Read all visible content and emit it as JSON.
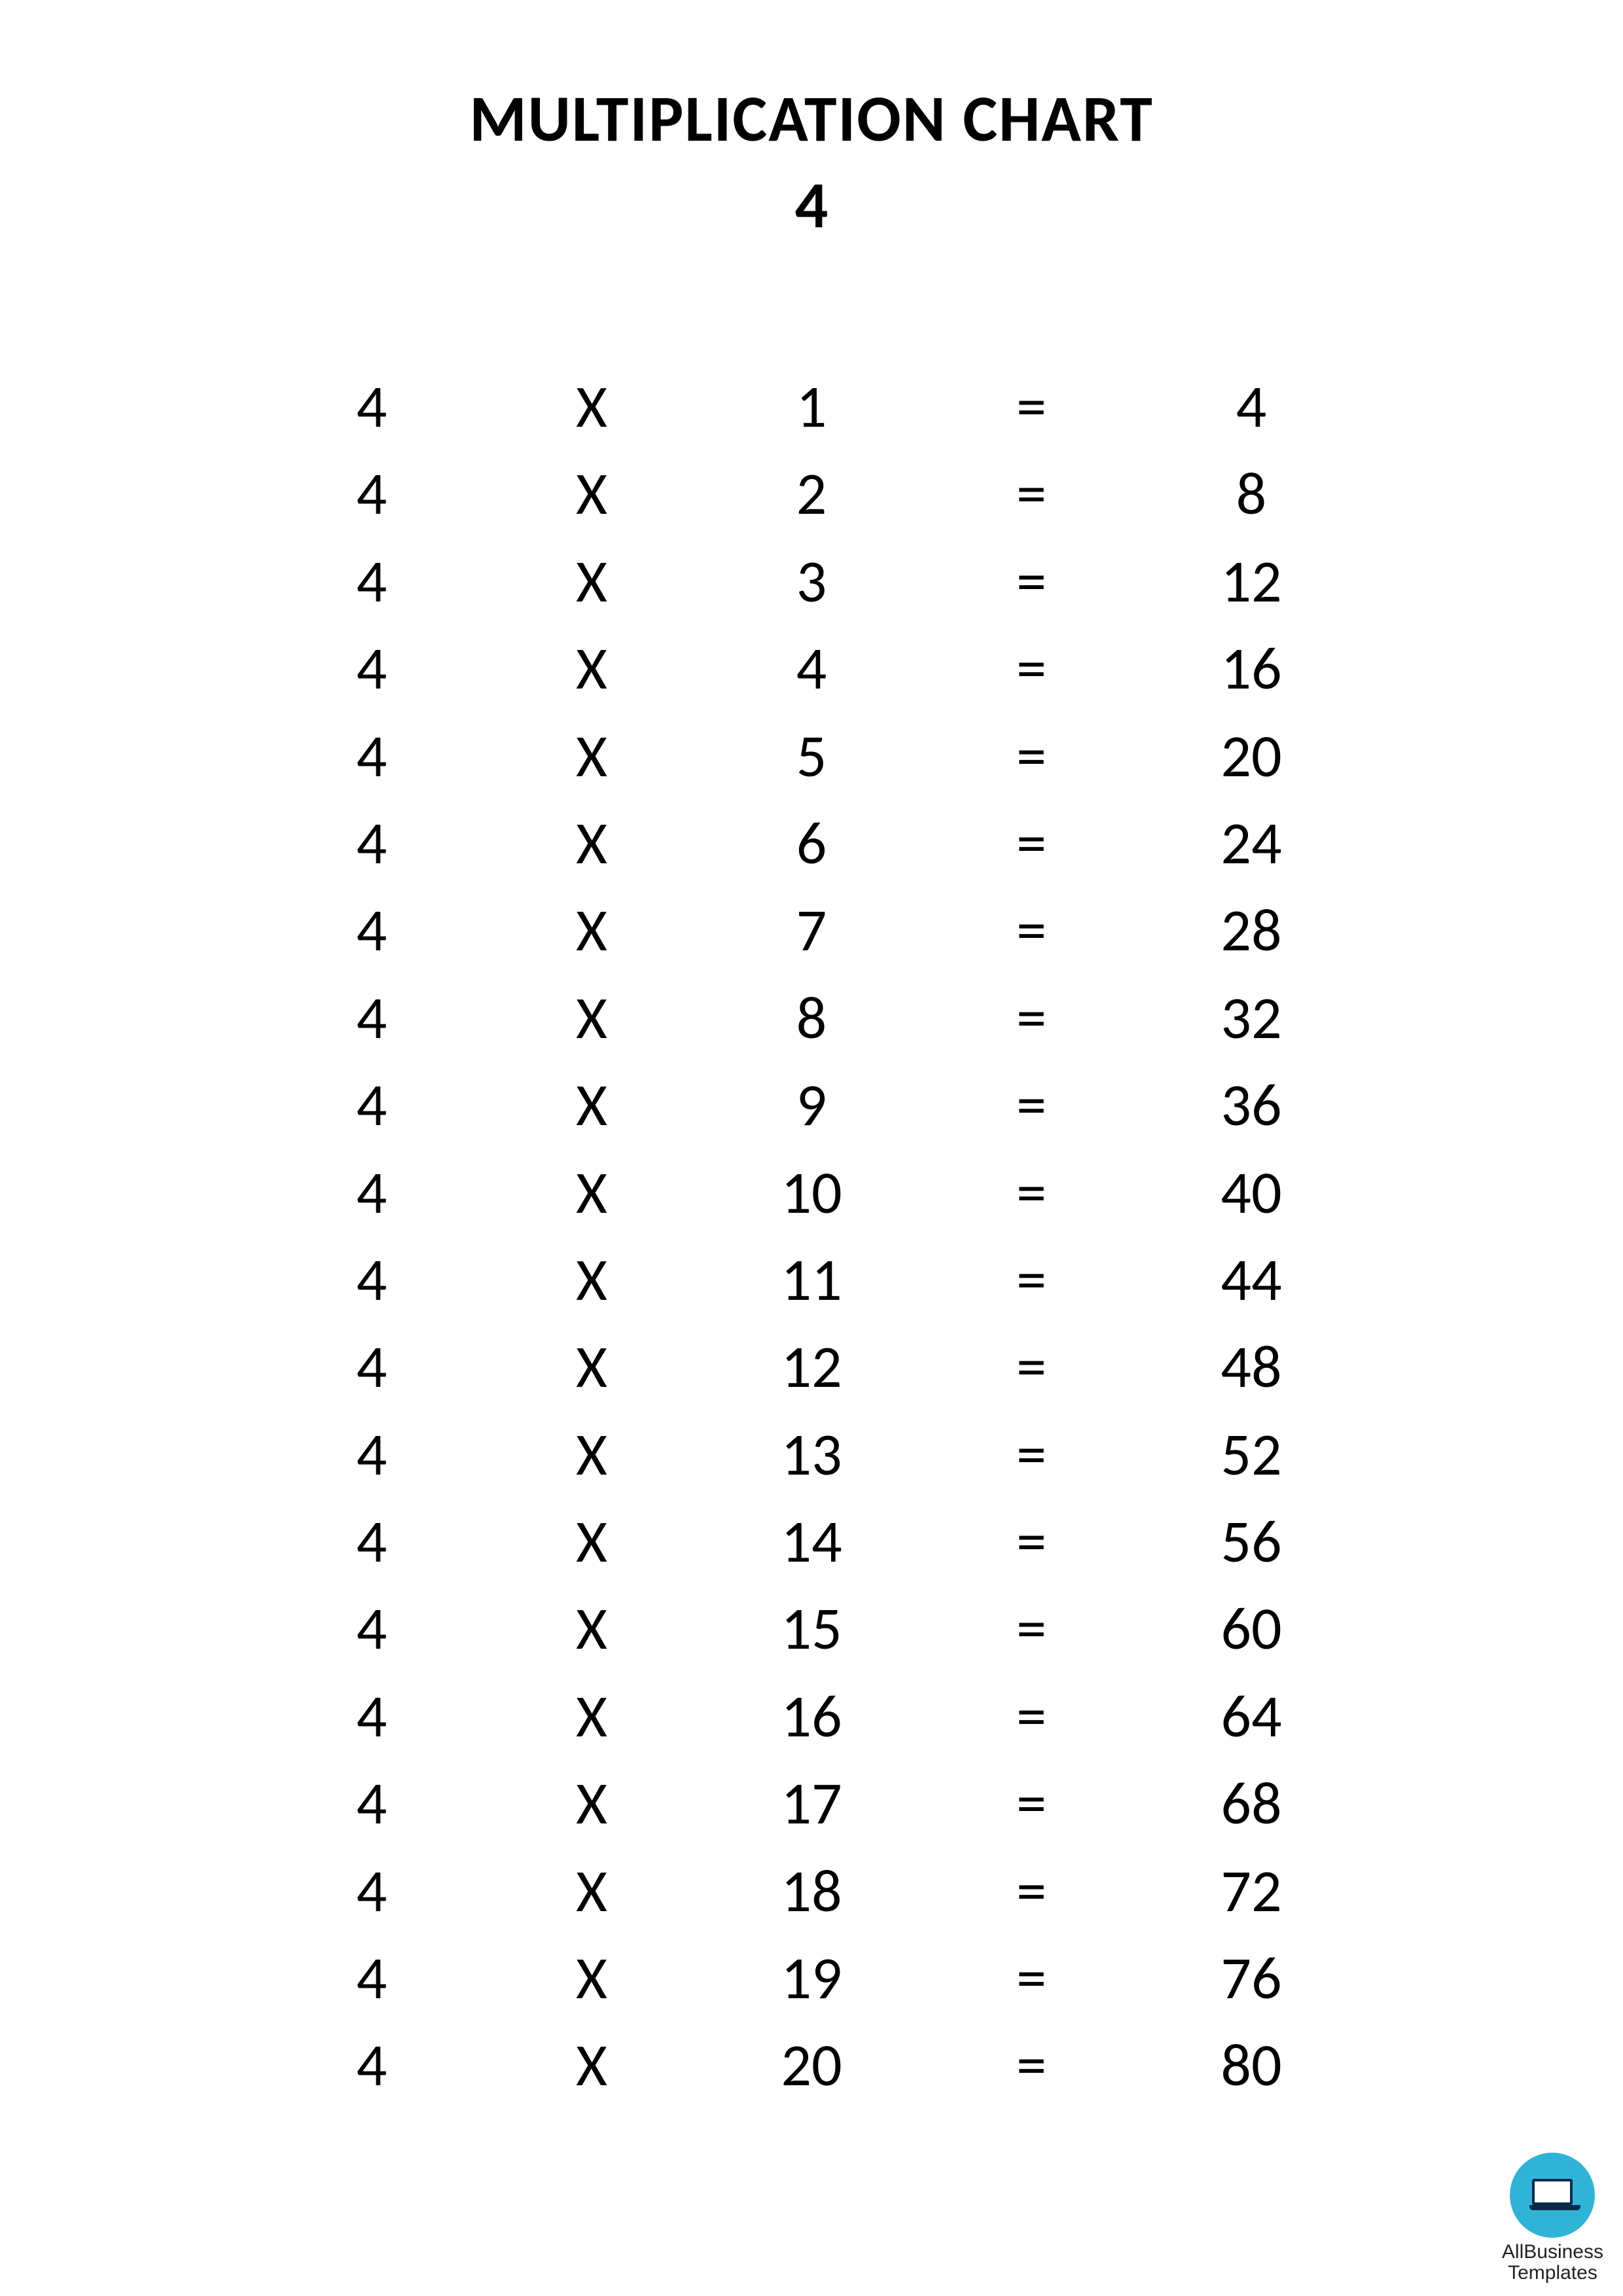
{
  "header": {
    "title": "MULTIPLICATION CHART",
    "subtitle": "4"
  },
  "table": {
    "type": "table",
    "columns": [
      "multiplicand",
      "operator",
      "multiplier",
      "equals",
      "product"
    ],
    "operator_symbol": "X",
    "equals_symbol": "=",
    "font_size_pt": 69,
    "text_color": "#000000",
    "background_color": "#ffffff",
    "rows": [
      {
        "a": "4",
        "op": "X",
        "b": "1",
        "eq": "=",
        "r": "4"
      },
      {
        "a": "4",
        "op": "X",
        "b": "2",
        "eq": "=",
        "r": "8"
      },
      {
        "a": "4",
        "op": "X",
        "b": "3",
        "eq": "=",
        "r": "12"
      },
      {
        "a": "4",
        "op": "X",
        "b": "4",
        "eq": "=",
        "r": "16"
      },
      {
        "a": "4",
        "op": "X",
        "b": "5",
        "eq": "=",
        "r": "20"
      },
      {
        "a": "4",
        "op": "X",
        "b": "6",
        "eq": "=",
        "r": "24"
      },
      {
        "a": "4",
        "op": "X",
        "b": "7",
        "eq": "=",
        "r": "28"
      },
      {
        "a": "4",
        "op": "X",
        "b": "8",
        "eq": "=",
        "r": "32"
      },
      {
        "a": "4",
        "op": "X",
        "b": "9",
        "eq": "=",
        "r": "36"
      },
      {
        "a": "4",
        "op": "X",
        "b": "10",
        "eq": "=",
        "r": "40"
      },
      {
        "a": "4",
        "op": "X",
        "b": "11",
        "eq": "=",
        "r": "44"
      },
      {
        "a": "4",
        "op": "X",
        "b": "12",
        "eq": "=",
        "r": "48"
      },
      {
        "a": "4",
        "op": "X",
        "b": "13",
        "eq": "=",
        "r": "52"
      },
      {
        "a": "4",
        "op": "X",
        "b": "14",
        "eq": "=",
        "r": "56"
      },
      {
        "a": "4",
        "op": "X",
        "b": "15",
        "eq": "=",
        "r": "60"
      },
      {
        "a": "4",
        "op": "X",
        "b": "16",
        "eq": "=",
        "r": "64"
      },
      {
        "a": "4",
        "op": "X",
        "b": "17",
        "eq": "=",
        "r": "68"
      },
      {
        "a": "4",
        "op": "X",
        "b": "18",
        "eq": "=",
        "r": "72"
      },
      {
        "a": "4",
        "op": "X",
        "b": "19",
        "eq": "=",
        "r": "76"
      },
      {
        "a": "4",
        "op": "X",
        "b": "20",
        "eq": "=",
        "r": "80"
      }
    ]
  },
  "watermark": {
    "line1": "AllBusiness",
    "line2": "Templates",
    "circle_color": "#2fb4d8",
    "icon_color": "#0a2a4a"
  }
}
